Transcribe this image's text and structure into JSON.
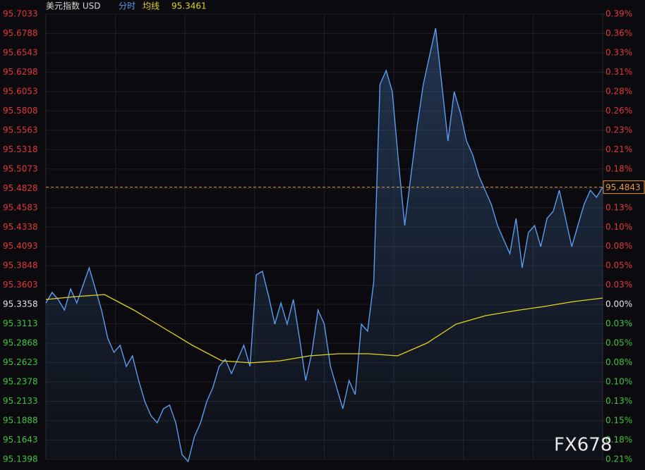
{
  "chart_data": {
    "type": "line",
    "title": "美元指数 USD",
    "average_value": "95.3461",
    "current_value": 95.4843,
    "watermark": "FX678",
    "ylim": [
      95.1398,
      95.7033
    ],
    "yticks": [
      95.7033,
      95.6788,
      95.6543,
      95.6298,
      95.6053,
      95.5808,
      95.5563,
      95.5318,
      95.5073,
      95.4828,
      95.4583,
      95.4338,
      95.4093,
      95.3848,
      95.3603,
      95.3358,
      95.3113,
      95.2868,
      95.2623,
      95.2378,
      95.2133,
      95.1888,
      95.1643,
      95.1398
    ],
    "y2lim": [
      -0.2056,
      0.3855
    ],
    "y2ticks": [
      {
        "value": 0.3855,
        "label": "0.39%"
      },
      {
        "value": 0.3598,
        "label": "0.36%"
      },
      {
        "value": 0.3341,
        "label": "0.33%"
      },
      {
        "value": 0.3084,
        "label": "0.31%"
      },
      {
        "value": 0.2827,
        "label": "0.28%"
      },
      {
        "value": 0.257,
        "label": "0.26%"
      },
      {
        "value": 0.2313,
        "label": "0.23%"
      },
      {
        "value": 0.2056,
        "label": "0.21%"
      },
      {
        "value": 0.1799,
        "label": "0.18%"
      },
      {
        "value": 0.1542,
        "label": "0.15%"
      },
      {
        "value": 0.1285,
        "label": "0.13%"
      },
      {
        "value": 0.1028,
        "label": "0.10%"
      },
      {
        "value": 0.0771,
        "label": "0.08%"
      },
      {
        "value": 0.0514,
        "label": "0.05%"
      },
      {
        "value": 0.0257,
        "label": "0.03%"
      },
      {
        "value": 0,
        "label": "0.00%"
      },
      {
        "value": -0.0257,
        "label": "0.03%"
      },
      {
        "value": -0.0514,
        "label": "0.05%"
      },
      {
        "value": -0.0771,
        "label": "0.08%"
      },
      {
        "value": -0.1028,
        "label": "0.10%"
      },
      {
        "value": -0.1285,
        "label": "0.13%"
      },
      {
        "value": -0.1542,
        "label": "0.15%"
      },
      {
        "value": -0.1799,
        "label": "0.18%"
      },
      {
        "value": -0.2056,
        "label": "0.21%"
      }
    ],
    "grid": true,
    "series": [
      {
        "name": "分时",
        "color": "#5b9bf0",
        "values": [
          95.3377,
          95.3511,
          95.3422,
          95.3288,
          95.3556,
          95.3377,
          95.36,
          95.3823,
          95.3556,
          95.3288,
          95.2932,
          95.2753,
          95.2842,
          95.2575,
          95.2709,
          95.2397,
          95.2129,
          95.1951,
          95.1862,
          95.204,
          95.2085,
          95.1862,
          95.146,
          95.1371,
          95.1683,
          95.1862,
          95.2129,
          95.2308,
          95.2575,
          95.2664,
          95.2486,
          95.2664,
          95.2842,
          95.2575,
          95.3734,
          95.3779,
          95.3467,
          95.311,
          95.3377,
          95.311,
          95.3422,
          95.2932,
          95.2397,
          95.2753,
          95.3288,
          95.311,
          95.2575,
          95.2308,
          95.204,
          95.2397,
          95.2218,
          95.311,
          95.3021,
          95.3645,
          95.6141,
          95.632,
          95.6052,
          95.5161,
          95.4358,
          95.4982,
          95.5606,
          95.6141,
          95.6498,
          95.6855,
          95.6141,
          95.5428,
          95.6052,
          95.5785,
          95.5428,
          95.525,
          95.4982,
          95.4804,
          95.4626,
          95.4358,
          95.418,
          95.4002,
          95.4447,
          95.3823,
          95.4269,
          95.4358,
          95.4091,
          95.4447,
          95.4537,
          95.4804,
          95.4447,
          95.4091,
          95.4358,
          95.4626,
          95.4804,
          95.4715,
          95.4843
        ]
      },
      {
        "name": "均线",
        "color": "#e6d21e",
        "values": [
          95.3422,
          95.3458,
          95.3484,
          95.3288,
          95.3065,
          95.2842,
          95.2646,
          95.262,
          95.2646,
          95.2709,
          95.2735,
          95.2735,
          95.2709,
          95.2869,
          95.311,
          95.3217,
          95.3279,
          95.3333,
          95.3395,
          95.344
        ]
      }
    ]
  }
}
